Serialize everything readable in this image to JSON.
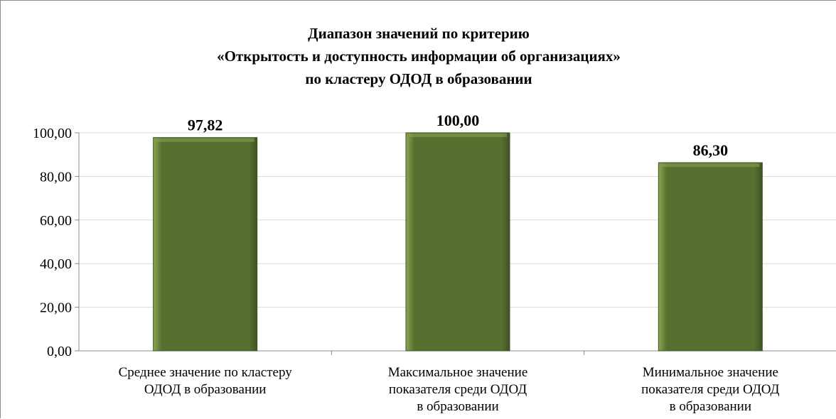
{
  "chart_data": {
    "type": "bar",
    "title": [
      "Диапазон значений по критерию",
      "«Открытость и доступность информации об организациях»",
      "по кластеру ОДОД в образовании"
    ],
    "categories": [
      [
        "Среднее значение по кластеру",
        "ОДОД в образовании"
      ],
      [
        "Максимальное значение",
        "показателя среди ОДОД",
        "в образовании"
      ],
      [
        "Минимальное значение",
        "показателя среди ОДОД",
        "в образовании"
      ]
    ],
    "values": [
      97.82,
      100.0,
      86.3
    ],
    "value_labels": [
      "97,82",
      "100,00",
      "86,30"
    ],
    "y_ticks": [
      0,
      20,
      40,
      60,
      80,
      100
    ],
    "y_tick_labels": [
      "0,00",
      "20,00",
      "40,00",
      "60,00",
      "80,00",
      "100,00"
    ],
    "ylim": [
      0,
      100
    ],
    "grid": true,
    "legend": "none",
    "colors": {
      "bar_fill": "#58702f",
      "bar_light": "#8aa654",
      "bar_dark": "#3f5322",
      "grid": "#d9d9d9",
      "axis": "#8c8c8c"
    }
  }
}
